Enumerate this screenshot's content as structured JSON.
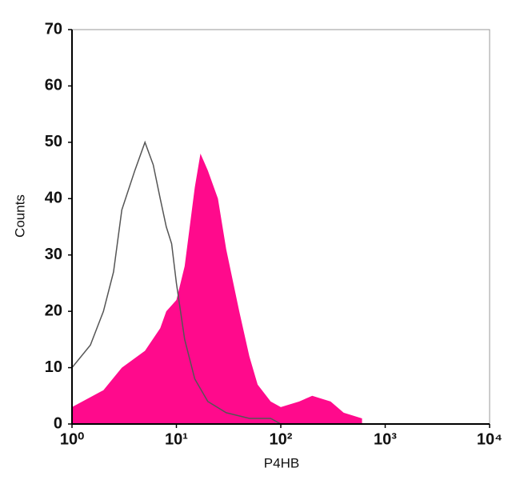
{
  "chart_data": {
    "type": "histogram-overlay",
    "x_label": "P4HB",
    "y_label": "Counts",
    "xscale": "log",
    "xlim": [
      1,
      10000
    ],
    "xticks": [
      {
        "value": 1,
        "label": "10⁰"
      },
      {
        "value": 10,
        "label": "10¹"
      },
      {
        "value": 100,
        "label": "10²"
      },
      {
        "value": 1000,
        "label": "10³"
      },
      {
        "value": 10000,
        "label": "10⁴"
      }
    ],
    "ylim": [
      0,
      70
    ],
    "yticks": [
      0,
      10,
      20,
      30,
      40,
      50,
      60,
      70
    ],
    "series": [
      {
        "style": "filled",
        "color": "#ff0a8c",
        "x": [
          1,
          2,
          3,
          5,
          7,
          8,
          10,
          12,
          15,
          17,
          20,
          25,
          30,
          40,
          50,
          60,
          80,
          100,
          150,
          200,
          300,
          400,
          600
        ],
        "values": [
          3,
          6,
          10,
          13,
          17,
          20,
          22,
          28,
          42,
          48,
          45,
          40,
          31,
          20,
          12,
          7,
          4,
          3,
          4,
          5,
          4,
          2,
          1
        ]
      },
      {
        "style": "outline",
        "color": "#555555",
        "x": [
          1,
          1.5,
          2,
          2.5,
          3,
          4,
          5,
          6,
          7,
          8,
          9,
          10,
          12,
          15,
          20,
          30,
          50,
          80,
          100
        ],
        "values": [
          10,
          14,
          20,
          27,
          38,
          45,
          50,
          46,
          40,
          35,
          32,
          25,
          15,
          8,
          4,
          2,
          1,
          1,
          0
        ]
      }
    ]
  }
}
